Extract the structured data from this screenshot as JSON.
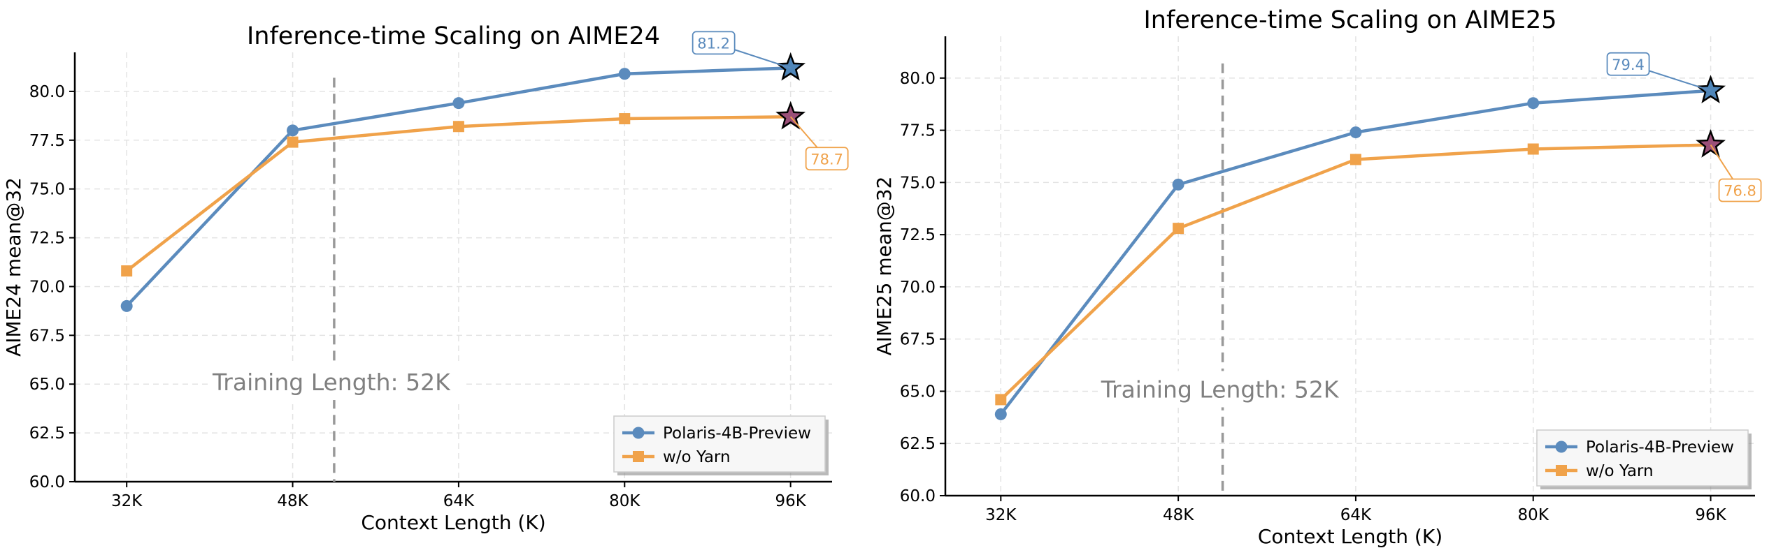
{
  "colors": {
    "polaris": "#5b8bbd",
    "yarn": "#f0a24a",
    "star_polaris": "#4f86b9",
    "star_yarn": "#9b4f78",
    "vline": "#999999",
    "grid": "#e3e3e3"
  },
  "chart_data": [
    {
      "type": "line",
      "title": "Inference-time Scaling on AIME24",
      "xlabel": "Context Length (K)",
      "ylabel": "AIME24 mean@32",
      "categories": [
        "32K",
        "48K",
        "64K",
        "80K",
        "96K"
      ],
      "x": [
        32,
        48,
        64,
        80,
        96
      ],
      "ylim": [
        60.0,
        82.0
      ],
      "yticks": [
        "60.0",
        "62.5",
        "65.0",
        "67.5",
        "70.0",
        "72.5",
        "75.0",
        "77.5",
        "80.0"
      ],
      "grid": true,
      "legend_position": "lower-right",
      "vline": {
        "x": 52,
        "label": "Training Length: 52K"
      },
      "series": [
        {
          "name": "Polaris-4B-Preview",
          "marker": "circle",
          "values": [
            69.0,
            78.0,
            79.4,
            80.9,
            81.2
          ]
        },
        {
          "name": "w/o Yarn",
          "marker": "square",
          "values": [
            70.8,
            77.4,
            78.2,
            78.6,
            78.7
          ]
        }
      ],
      "annotations": [
        {
          "text": "81.2",
          "series": 0,
          "point": 4
        },
        {
          "text": "78.7",
          "series": 1,
          "point": 4
        }
      ]
    },
    {
      "type": "line",
      "title": "Inference-time Scaling on AIME25",
      "xlabel": "Context Length (K)",
      "ylabel": "AIME25 mean@32",
      "categories": [
        "32K",
        "48K",
        "64K",
        "80K",
        "96K"
      ],
      "x": [
        32,
        48,
        64,
        80,
        96
      ],
      "ylim": [
        60.0,
        82.0
      ],
      "yticks": [
        "60.0",
        "62.5",
        "65.0",
        "67.5",
        "70.0",
        "72.5",
        "75.0",
        "77.5",
        "80.0"
      ],
      "grid": true,
      "legend_position": "lower-right",
      "vline": {
        "x": 52,
        "label": "Training Length: 52K"
      },
      "series": [
        {
          "name": "Polaris-4B-Preview",
          "marker": "circle",
          "values": [
            63.9,
            74.9,
            77.4,
            78.8,
            79.4
          ]
        },
        {
          "name": "w/o Yarn",
          "marker": "square",
          "values": [
            64.6,
            72.8,
            76.1,
            76.6,
            76.8
          ]
        }
      ],
      "annotations": [
        {
          "text": "79.4",
          "series": 0,
          "point": 4
        },
        {
          "text": "76.8",
          "series": 1,
          "point": 4
        }
      ]
    }
  ]
}
